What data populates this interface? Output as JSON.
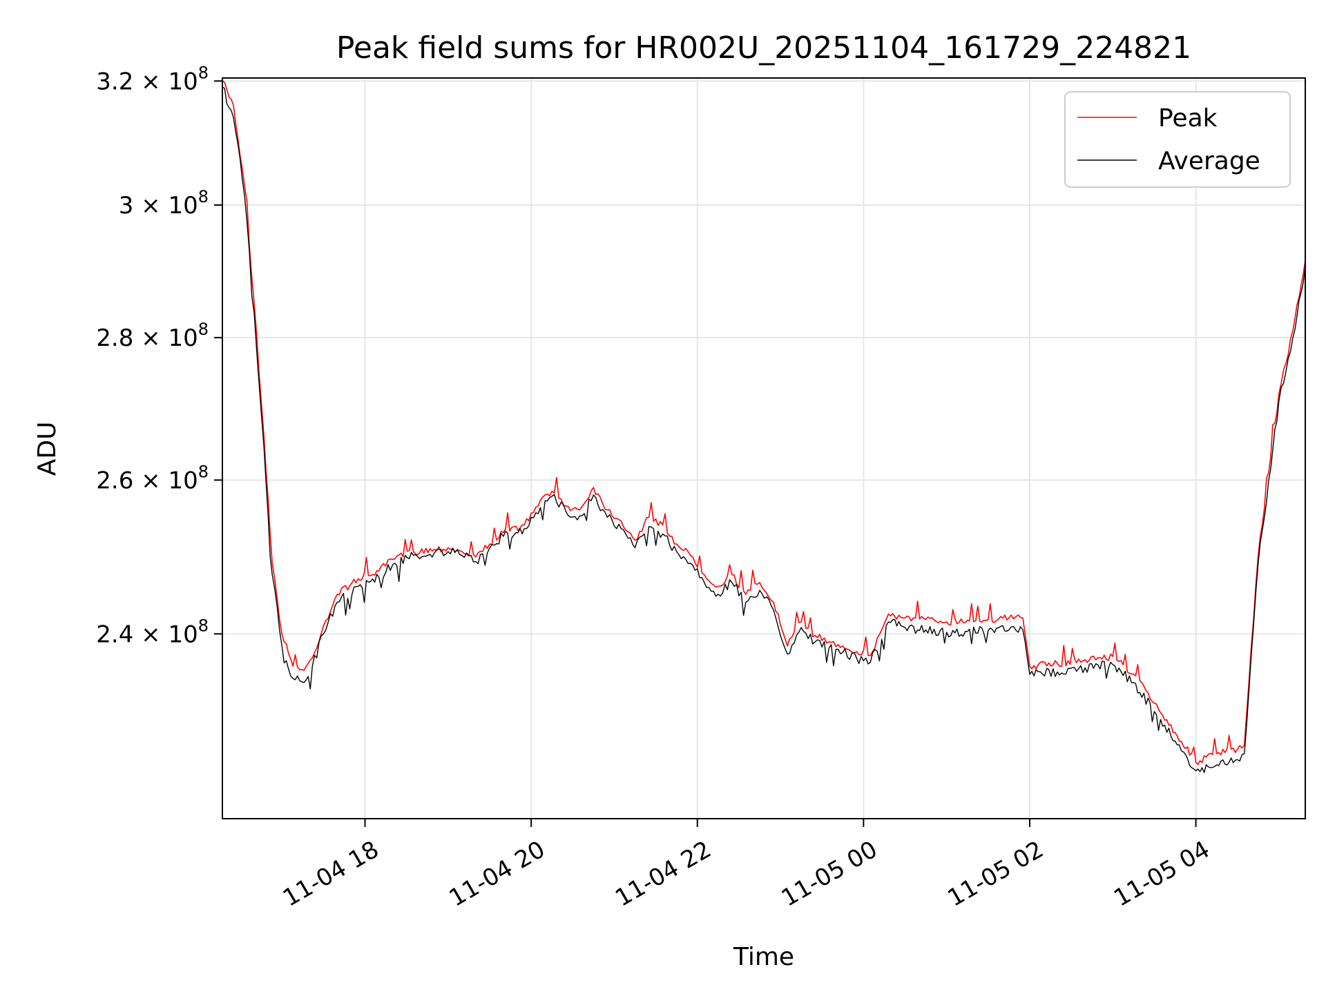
{
  "chart_data": {
    "type": "line",
    "title": "Peak field sums for HR002U_20251104_161729_224821",
    "xlabel": "Time",
    "ylabel": "ADU",
    "y_scale": "log",
    "ylim": [
      218000000,
      320500000
    ],
    "xlim": [
      "2025-11-04 16:17",
      "2025-11-05 05:19"
    ],
    "x_ticks": [
      {
        "t": "2025-11-04 18:00",
        "label": "11-04 18"
      },
      {
        "t": "2025-11-04 20:00",
        "label": "11-04 20"
      },
      {
        "t": "2025-11-04 22:00",
        "label": "11-04 22"
      },
      {
        "t": "2025-11-05 00:00",
        "label": "11-05 00"
      },
      {
        "t": "2025-11-05 02:00",
        "label": "11-05 02"
      },
      {
        "t": "2025-11-05 04:00",
        "label": "11-05 04"
      }
    ],
    "y_ticks": [
      {
        "value": 240000000,
        "mantissa": "2.4",
        "exponent": "8"
      },
      {
        "value": 260000000,
        "mantissa": "2.6",
        "exponent": "8"
      },
      {
        "value": 280000000,
        "mantissa": "2.8",
        "exponent": "8"
      },
      {
        "value": 300000000,
        "mantissa": "3",
        "exponent": "8"
      },
      {
        "value": 320000000,
        "mantissa": "3.2",
        "exponent": "8"
      }
    ],
    "grid": true,
    "legend_position": "top-right",
    "series": [
      {
        "name": "Peak",
        "color": "#ff0000",
        "points": [
          [
            "2025-11-04 16:17",
            320000000
          ],
          [
            "2025-11-04 16:25",
            316000000
          ],
          [
            "2025-11-04 16:33",
            303000000
          ],
          [
            "2025-11-04 16:40",
            285000000
          ],
          [
            "2025-11-04 16:47",
            266000000
          ],
          [
            "2025-11-04 16:53",
            249000000
          ],
          [
            "2025-11-04 17:00",
            240000000
          ],
          [
            "2025-11-04 17:08",
            236000000
          ],
          [
            "2025-11-04 17:16",
            235500000
          ],
          [
            "2025-11-04 17:22",
            237000000
          ],
          [
            "2025-11-04 17:30",
            241000000
          ],
          [
            "2025-11-04 17:40",
            245000000
          ],
          [
            "2025-11-04 17:55",
            247000000
          ],
          [
            "2025-11-04 18:10",
            248000000
          ],
          [
            "2025-11-04 18:20",
            249500000
          ],
          [
            "2025-11-04 18:35",
            250500000
          ],
          [
            "2025-11-04 18:50",
            250800000
          ],
          [
            "2025-11-04 19:00",
            251000000
          ],
          [
            "2025-11-04 19:10",
            250500000
          ],
          [
            "2025-11-04 19:20",
            249800000
          ],
          [
            "2025-11-04 19:30",
            251500000
          ],
          [
            "2025-11-04 19:40",
            253000000
          ],
          [
            "2025-11-04 19:55",
            254000000
          ],
          [
            "2025-11-04 20:05",
            256500000
          ],
          [
            "2025-11-04 20:10",
            258000000
          ],
          [
            "2025-11-04 20:15",
            258500000
          ],
          [
            "2025-11-04 20:25",
            256500000
          ],
          [
            "2025-11-04 20:35",
            256000000
          ],
          [
            "2025-11-04 20:45",
            259000000
          ],
          [
            "2025-11-04 20:55",
            256000000
          ],
          [
            "2025-11-04 21:05",
            254500000
          ],
          [
            "2025-11-04 21:15",
            252000000
          ],
          [
            "2025-11-04 21:25",
            255000000
          ],
          [
            "2025-11-04 21:35",
            254000000
          ],
          [
            "2025-11-04 21:45",
            251500000
          ],
          [
            "2025-11-04 21:55",
            250000000
          ],
          [
            "2025-11-04 22:05",
            247500000
          ],
          [
            "2025-11-04 22:15",
            246000000
          ],
          [
            "2025-11-04 22:25",
            247500000
          ],
          [
            "2025-11-04 22:35",
            245000000
          ],
          [
            "2025-11-04 22:45",
            246500000
          ],
          [
            "2025-11-04 22:55",
            244000000
          ],
          [
            "2025-11-04 23:05",
            238500000
          ],
          [
            "2025-11-04 23:15",
            241500000
          ],
          [
            "2025-11-04 23:25",
            239800000
          ],
          [
            "2025-11-04 23:35",
            239000000
          ],
          [
            "2025-11-04 23:45",
            238500000
          ],
          [
            "2025-11-04 23:55",
            237800000
          ],
          [
            "2025-11-05 00:05",
            237300000
          ],
          [
            "2025-11-05 00:18",
            242500000
          ],
          [
            "2025-11-05 00:30",
            242000000
          ],
          [
            "2025-11-05 00:45",
            241800000
          ],
          [
            "2025-11-05 01:00",
            241500000
          ],
          [
            "2025-11-05 01:15",
            241700000
          ],
          [
            "2025-11-05 01:30",
            241800000
          ],
          [
            "2025-11-05 01:45",
            242000000
          ],
          [
            "2025-11-05 01:55",
            242000000
          ],
          [
            "2025-11-05 02:00",
            236000000
          ],
          [
            "2025-11-05 02:20",
            236300000
          ],
          [
            "2025-11-05 02:40",
            236800000
          ],
          [
            "2025-11-05 03:00",
            237200000
          ],
          [
            "2025-11-05 03:15",
            235000000
          ],
          [
            "2025-11-05 03:30",
            231500000
          ],
          [
            "2025-11-05 03:45",
            228000000
          ],
          [
            "2025-11-05 04:00",
            224500000
          ],
          [
            "2025-11-05 04:15",
            225500000
          ],
          [
            "2025-11-05 04:30",
            226000000
          ],
          [
            "2025-11-05 04:35",
            226500000
          ],
          [
            "2025-11-05 04:45",
            250000000
          ],
          [
            "2025-11-05 05:00",
            272000000
          ],
          [
            "2025-11-05 05:10",
            281000000
          ],
          [
            "2025-11-05 05:19",
            291500000
          ]
        ]
      },
      {
        "name": "Average",
        "color": "#000000",
        "points": [
          [
            "2025-11-04 16:17",
            319000000
          ],
          [
            "2025-11-04 16:25",
            314000000
          ],
          [
            "2025-11-04 16:33",
            301500000
          ],
          [
            "2025-11-04 16:40",
            283500000
          ],
          [
            "2025-11-04 16:47",
            264500000
          ],
          [
            "2025-11-04 16:53",
            247500000
          ],
          [
            "2025-11-04 17:00",
            238500000
          ],
          [
            "2025-11-04 17:08",
            234500000
          ],
          [
            "2025-11-04 17:16",
            234000000
          ],
          [
            "2025-11-04 17:22",
            236000000
          ],
          [
            "2025-11-04 17:30",
            240000000
          ],
          [
            "2025-11-04 17:40",
            244000000
          ],
          [
            "2025-11-04 17:55",
            246000000
          ],
          [
            "2025-11-04 18:10",
            247200000
          ],
          [
            "2025-11-04 18:20",
            248800000
          ],
          [
            "2025-11-04 18:35",
            250000000
          ],
          [
            "2025-11-04 18:50",
            250300000
          ],
          [
            "2025-11-04 19:00",
            250500000
          ],
          [
            "2025-11-04 19:10",
            250000000
          ],
          [
            "2025-11-04 19:20",
            249200000
          ],
          [
            "2025-11-04 19:30",
            251000000
          ],
          [
            "2025-11-04 19:40",
            252500000
          ],
          [
            "2025-11-04 19:55",
            253500000
          ],
          [
            "2025-11-04 20:05",
            255500000
          ],
          [
            "2025-11-04 20:10",
            257200000
          ],
          [
            "2025-11-04 20:15",
            257800000
          ],
          [
            "2025-11-04 20:25",
            255800000
          ],
          [
            "2025-11-04 20:35",
            255200000
          ],
          [
            "2025-11-04 20:45",
            258000000
          ],
          [
            "2025-11-04 20:55",
            255000000
          ],
          [
            "2025-11-04 21:05",
            253500000
          ],
          [
            "2025-11-04 21:15",
            251000000
          ],
          [
            "2025-11-04 21:25",
            253800000
          ],
          [
            "2025-11-04 21:35",
            252800000
          ],
          [
            "2025-11-04 21:45",
            250500000
          ],
          [
            "2025-11-04 21:55",
            249000000
          ],
          [
            "2025-11-04 22:05",
            246500000
          ],
          [
            "2025-11-04 22:15",
            245000000
          ],
          [
            "2025-11-04 22:25",
            246500000
          ],
          [
            "2025-11-04 22:35",
            244000000
          ],
          [
            "2025-11-04 22:45",
            245500000
          ],
          [
            "2025-11-04 22:55",
            243000000
          ],
          [
            "2025-11-04 23:05",
            237500000
          ],
          [
            "2025-11-04 23:15",
            240800000
          ],
          [
            "2025-11-04 23:25",
            239000000
          ],
          [
            "2025-11-04 23:35",
            238200000
          ],
          [
            "2025-11-04 23:45",
            237700000
          ],
          [
            "2025-11-04 23:55",
            237000000
          ],
          [
            "2025-11-05 00:05",
            236500000
          ],
          [
            "2025-11-05 00:18",
            241500000
          ],
          [
            "2025-11-05 00:30",
            240800000
          ],
          [
            "2025-11-05 00:45",
            240500000
          ],
          [
            "2025-11-05 01:00",
            240200000
          ],
          [
            "2025-11-05 01:15",
            240300000
          ],
          [
            "2025-11-05 01:30",
            240400000
          ],
          [
            "2025-11-05 01:45",
            240500000
          ],
          [
            "2025-11-05 01:55",
            240500000
          ],
          [
            "2025-11-05 02:00",
            235000000
          ],
          [
            "2025-11-05 02:20",
            235300000
          ],
          [
            "2025-11-05 02:40",
            235800000
          ],
          [
            "2025-11-05 03:00",
            236200000
          ],
          [
            "2025-11-05 03:15",
            234000000
          ],
          [
            "2025-11-05 03:30",
            230500000
          ],
          [
            "2025-11-05 03:45",
            227000000
          ],
          [
            "2025-11-05 04:00",
            223500000
          ],
          [
            "2025-11-05 04:15",
            224200000
          ],
          [
            "2025-11-05 04:30",
            224800000
          ],
          [
            "2025-11-05 04:35",
            225500000
          ],
          [
            "2025-11-05 04:45",
            249000000
          ],
          [
            "2025-11-05 05:00",
            271000000
          ],
          [
            "2025-11-05 05:10",
            280000000
          ],
          [
            "2025-11-05 05:19",
            290500000
          ]
        ]
      }
    ]
  }
}
